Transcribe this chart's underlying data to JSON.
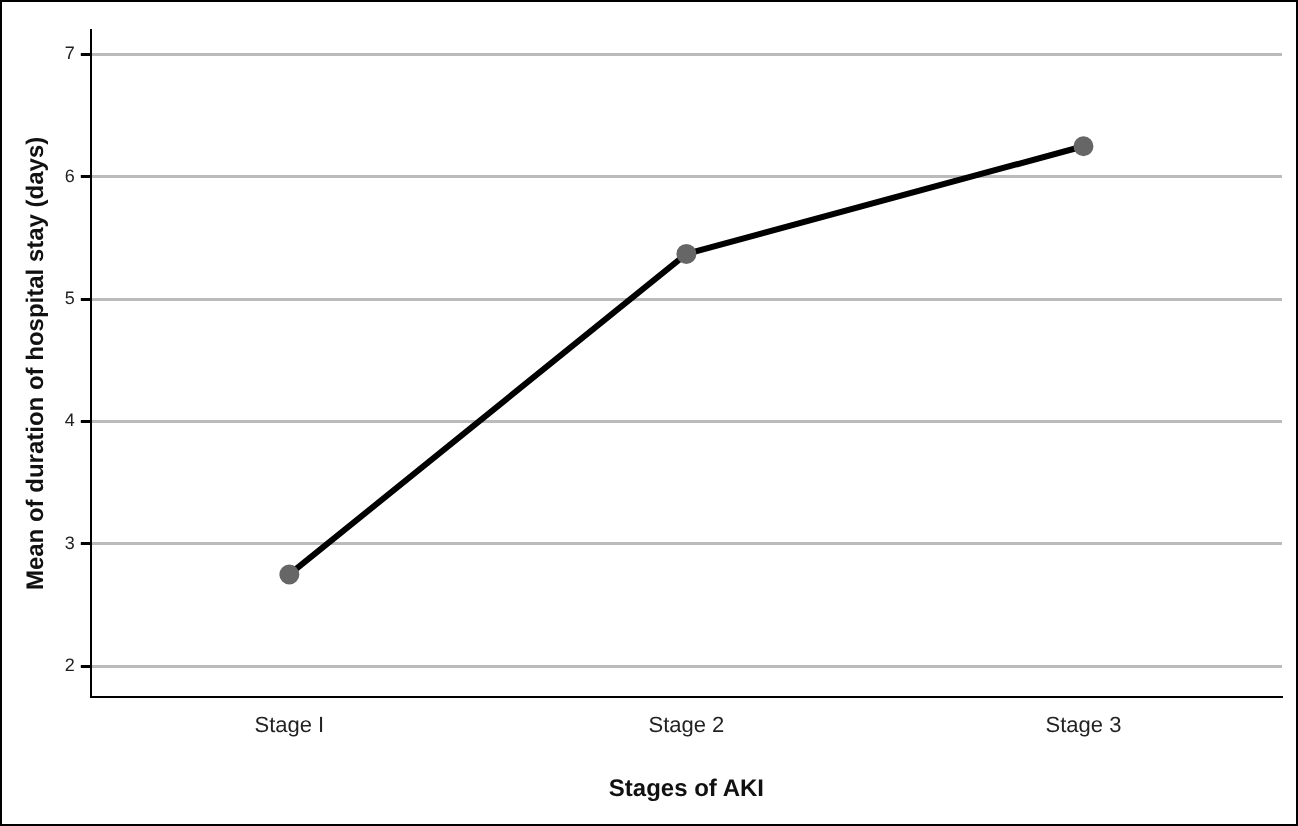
{
  "chart_data": {
    "type": "line",
    "xlabel": "Stages of AKI",
    "ylabel": "Mean of duration of hospital stay (days)",
    "categories": [
      "Stage I",
      "Stage 2",
      "Stage 3"
    ],
    "series": [
      {
        "color": "#000000",
        "values": [
          2.75,
          5.37,
          6.25
        ]
      }
    ],
    "ylim": [
      1.75,
      7.2
    ],
    "yticks": [
      2,
      3,
      4,
      5,
      6,
      7
    ],
    "grid": "y",
    "legend": false,
    "marker": "circle",
    "line_style": "solid"
  }
}
